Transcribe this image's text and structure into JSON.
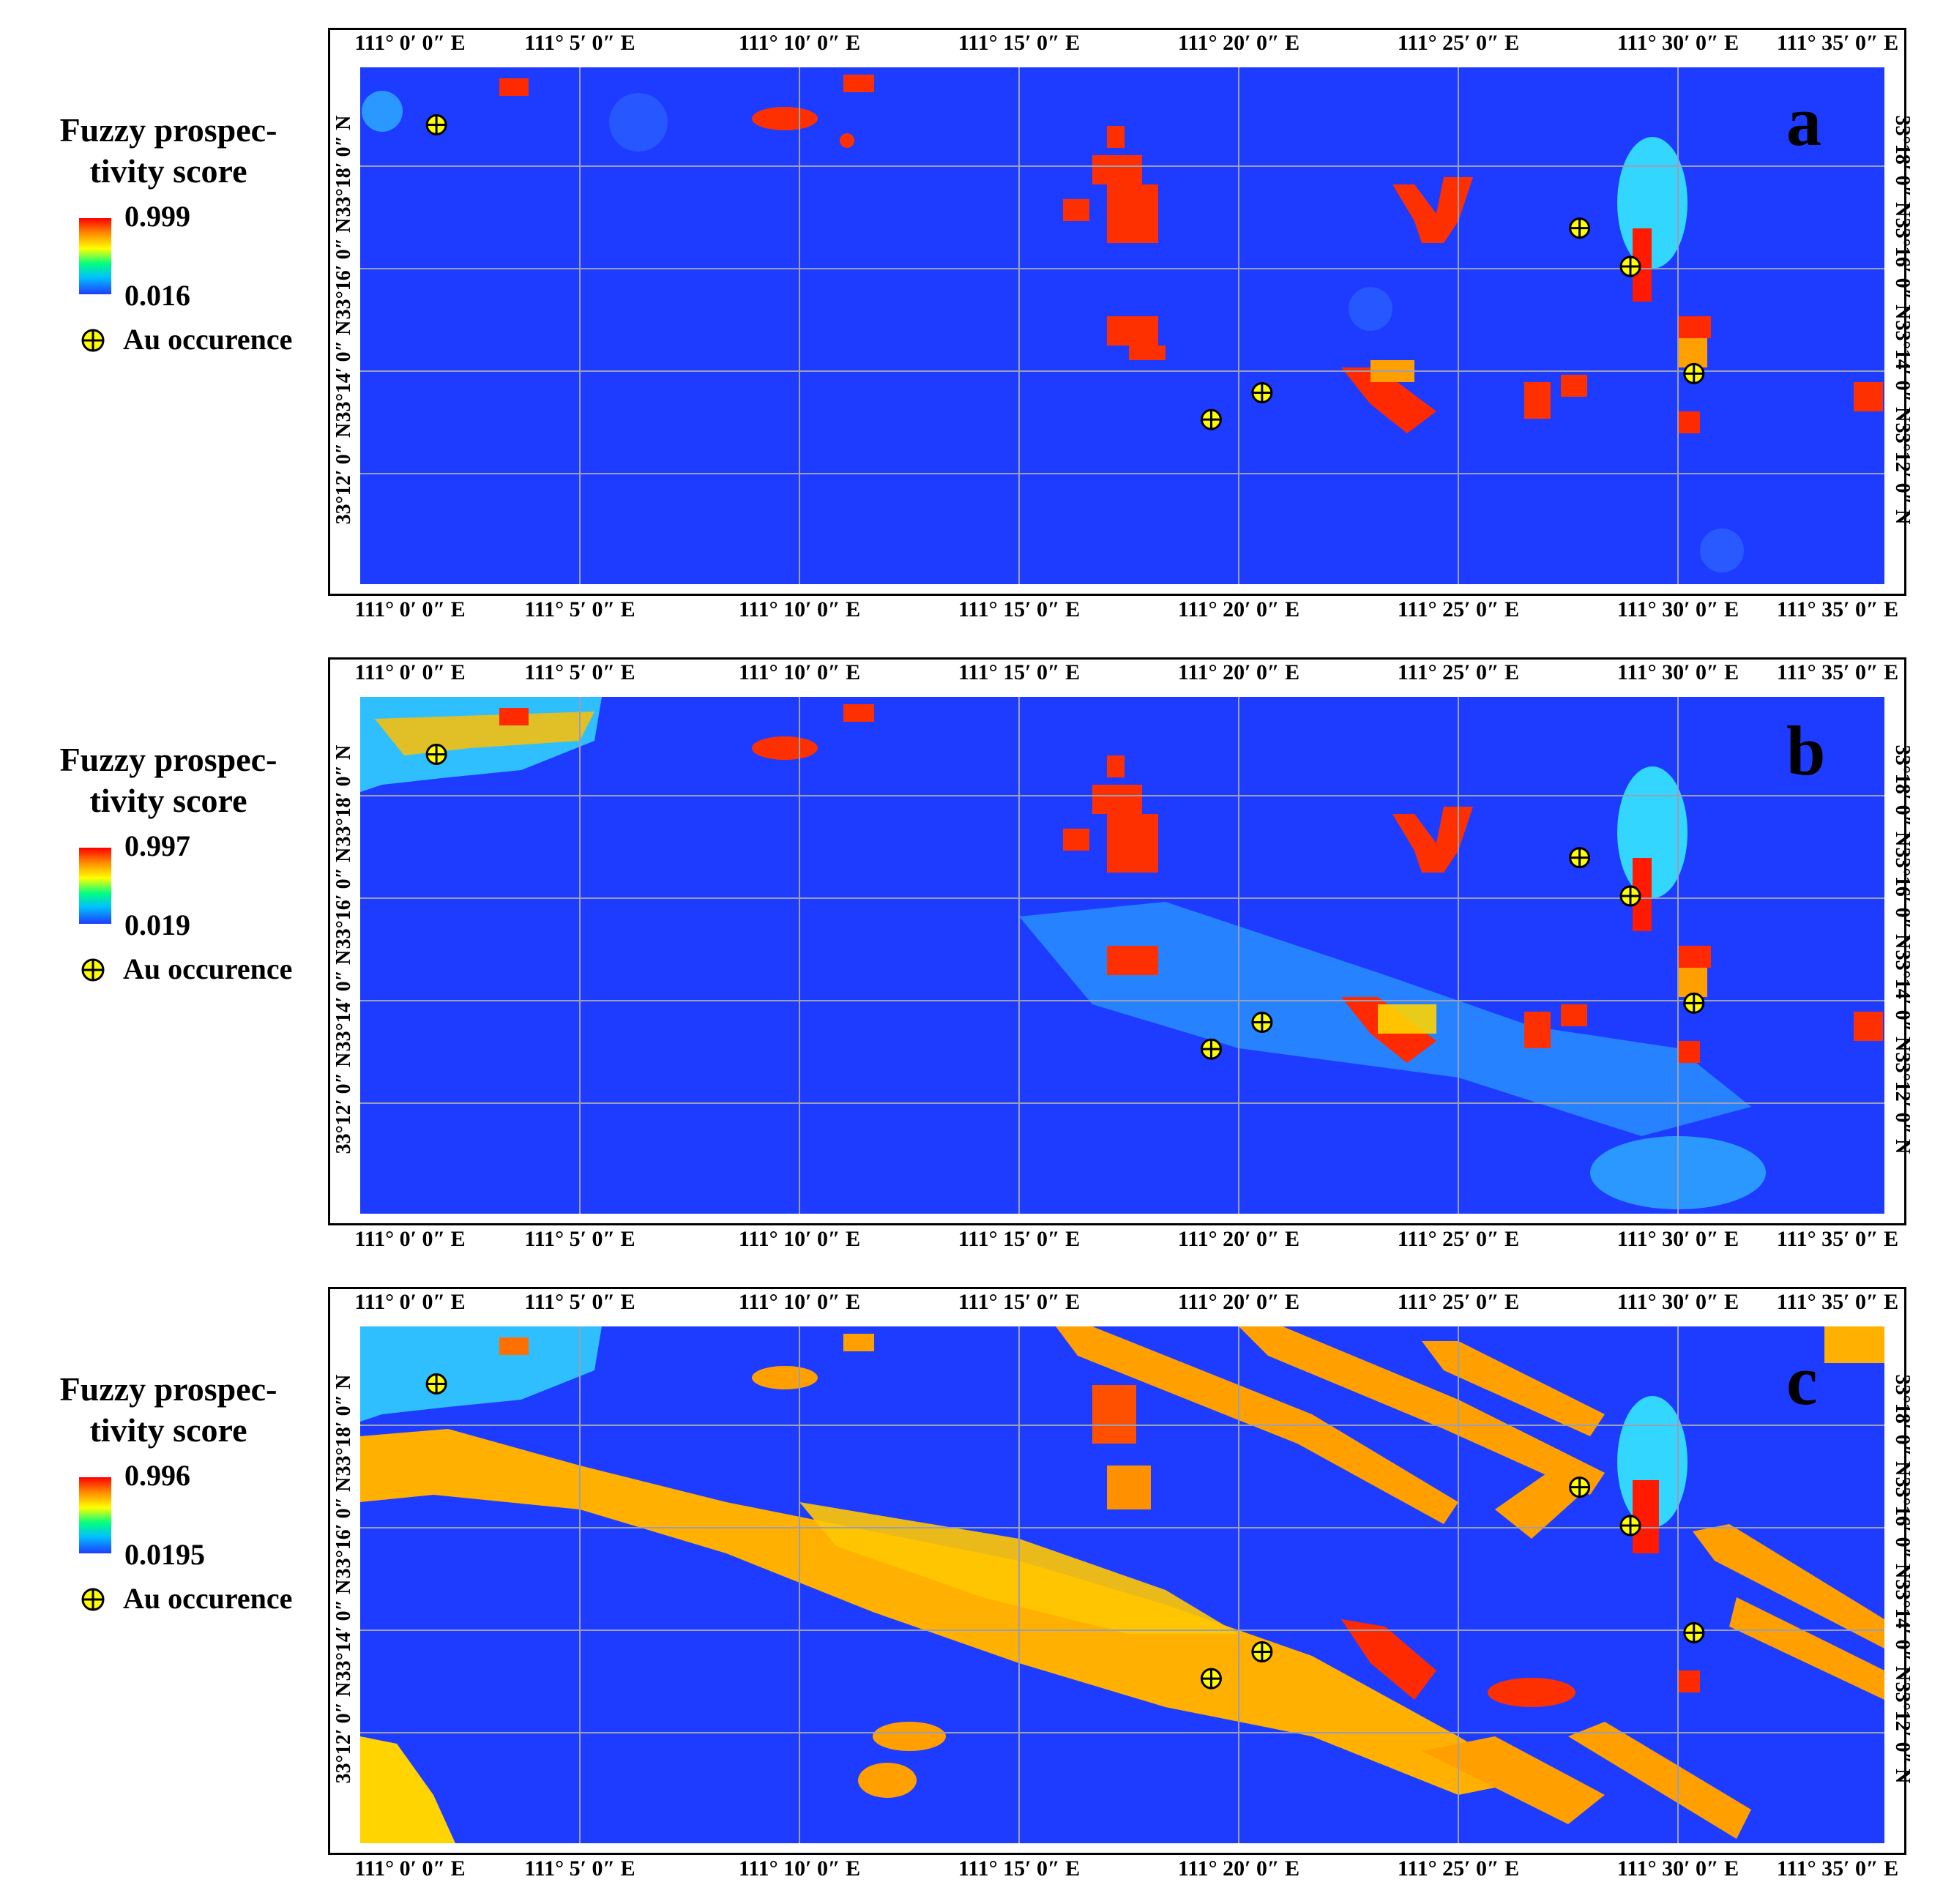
{
  "legend": {
    "title_line1": "Fuzzy prospec-",
    "title_line2": "tivity score",
    "au_label": "Au occurence"
  },
  "axes": {
    "top_bottom_labels": [
      "111° 0′ 0″ E",
      "111° 5′ 0″ E",
      "111° 10′ 0″ E",
      "111° 15′ 0″ E",
      "111° 20′ 0″ E",
      "111° 25′ 0″ E",
      "111° 30′ 0″ E",
      "111° 35′ 0″ E"
    ],
    "side_labels": [
      "33°18′ 0″ N",
      "33°16′ 0″ N",
      "33°14′ 0″ N",
      "33°12′ 0″ N"
    ]
  },
  "panels": [
    {
      "letter": "a",
      "max": "0.999",
      "min": "0.016"
    },
    {
      "letter": "b",
      "max": "0.997",
      "min": "0.019"
    },
    {
      "letter": "c",
      "max": "0.996",
      "min": "0.0195"
    }
  ],
  "colors": {
    "background": "#1e3cff",
    "high": "#ff2a00",
    "mid": "#ffa000",
    "yellow": "#ffd400",
    "cyan": "#33d6ff"
  },
  "au_occurrences_lonlat": [
    [
      111.03,
      33.305
    ],
    [
      111.48,
      33.278
    ],
    [
      111.5,
      33.268
    ],
    [
      111.355,
      33.235
    ],
    [
      111.335,
      33.228
    ],
    [
      111.525,
      33.24
    ]
  ]
}
